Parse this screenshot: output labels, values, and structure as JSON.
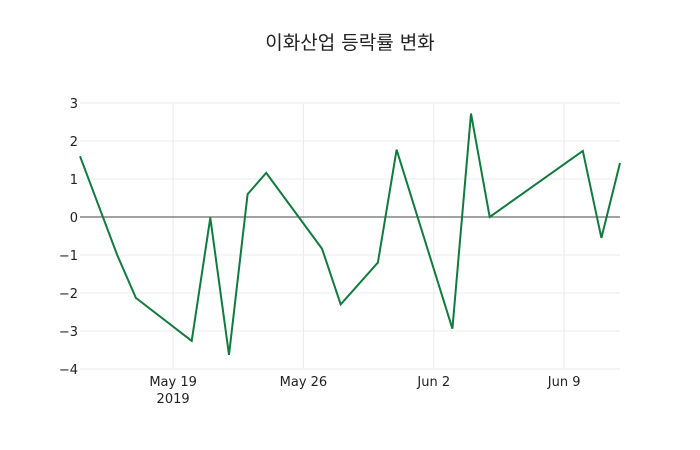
{
  "chart_data": {
    "type": "line",
    "title": "이화산업 등락률 변화",
    "xlabel": "",
    "ylabel": "",
    "ylim": [
      -4,
      3
    ],
    "yticks": [
      3,
      2,
      1,
      0,
      -1,
      -2,
      -3,
      -4
    ],
    "ytick_labels": [
      "3",
      "2",
      "1",
      "0",
      "−1",
      "−2",
      "−3",
      "−4"
    ],
    "xticks": [
      {
        "date": "2019-05-19",
        "label": "May 19",
        "sublabel": "2019"
      },
      {
        "date": "2019-05-26",
        "label": "May 26",
        "sublabel": ""
      },
      {
        "date": "2019-06-02",
        "label": "Jun 2",
        "sublabel": ""
      },
      {
        "date": "2019-06-09",
        "label": "Jun 9",
        "sublabel": ""
      }
    ],
    "grid": true,
    "zero_line": true,
    "line_color": "#117a3f",
    "series": [
      {
        "name": "등락률",
        "x": [
          "2019-05-14",
          "2019-05-16",
          "2019-05-17",
          "2019-05-20",
          "2019-05-21",
          "2019-05-22",
          "2019-05-23",
          "2019-05-24",
          "2019-05-27",
          "2019-05-28",
          "2019-05-30",
          "2019-05-31",
          "2019-06-03",
          "2019-06-04",
          "2019-06-05",
          "2019-06-10",
          "2019-06-11",
          "2019-06-12"
        ],
        "values": [
          1.6,
          -1.0,
          -2.13,
          -3.26,
          -0.02,
          -3.63,
          0.6,
          1.16,
          -0.84,
          -2.3,
          -1.2,
          1.77,
          -2.94,
          2.72,
          0.0,
          1.74,
          -0.55,
          1.42
        ]
      }
    ]
  }
}
